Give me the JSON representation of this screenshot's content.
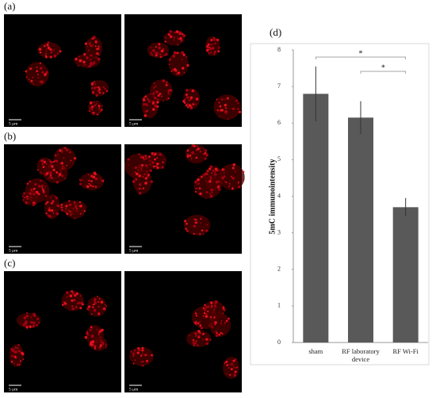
{
  "panels": [
    {
      "label": "(a)",
      "scale_bars": [
        "5 μm",
        "5 μm"
      ]
    },
    {
      "label": "(b)",
      "scale_bars": [
        "5 μm",
        "5 μm"
      ]
    },
    {
      "label": "(c)",
      "scale_bars": [
        "5 μm",
        "5 μm"
      ]
    }
  ],
  "chart_data": {
    "type": "bar",
    "label": "(d)",
    "y_label": "5mC immunointensity",
    "categories": [
      "sham",
      "RF laboratory device",
      "RF Wi-Fi"
    ],
    "values": [
      6.8,
      6.15,
      3.7
    ],
    "errors": [
      0.75,
      0.45,
      0.25
    ],
    "color": "#595959",
    "ylim": [
      0,
      8
    ],
    "yticks": [
      0,
      1,
      2,
      3,
      4,
      5,
      6,
      7,
      8
    ],
    "annotations": [
      "*",
      "*"
    ]
  }
}
